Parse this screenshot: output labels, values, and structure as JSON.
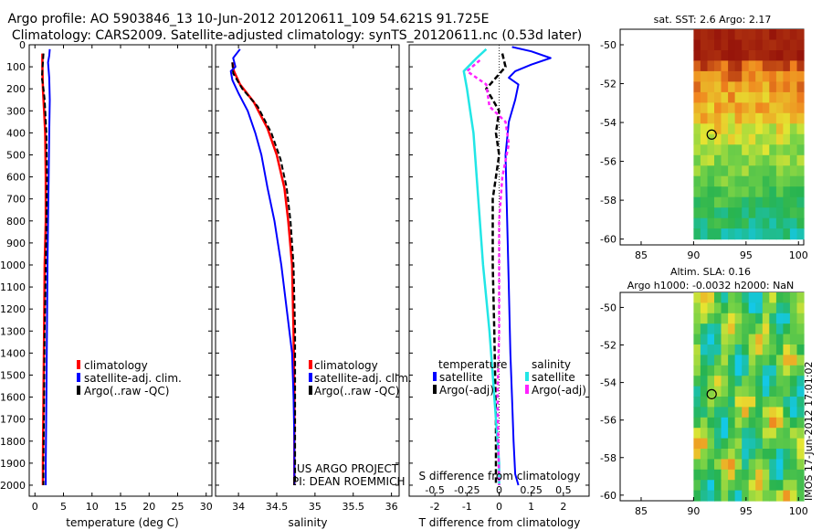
{
  "title": {
    "line1": "Argo profile: AO 5903846_13 10-Jun-2012 20120611_109 54.621S 91.725E",
    "line2": "Climatology: CARS2009. Satellite-adjusted climatology: synTS_20120611.nc (0.53d later)"
  },
  "footer": {
    "watermark": "IMOS 17-Jun-2012 17:01:02",
    "project_line1": "US ARGO PROJECT",
    "project_line2": "PI: DEAN ROEMMICH"
  },
  "colors": {
    "climatology": "#ff0000",
    "satellite": "#0000ff",
    "argo": "#000000",
    "salinity_sat": "#22e6e6",
    "salinity_argo": "#ff22ff"
  },
  "chart_data": [
    {
      "id": "temperature",
      "type": "line",
      "xlabel": "temperature (deg C)",
      "ylabel": "",
      "xlim": [
        -1,
        31
      ],
      "ylim": [
        0,
        2050
      ],
      "xticks": [
        0,
        5,
        10,
        15,
        20,
        25,
        30
      ],
      "yticks": [
        0,
        100,
        200,
        300,
        400,
        500,
        600,
        700,
        800,
        900,
        1000,
        1100,
        1200,
        1300,
        1400,
        1500,
        1600,
        1700,
        1800,
        1900,
        2000
      ],
      "legend": [
        "climatology",
        "satellite-adj. clim.",
        "Argo(..raw -QC)"
      ],
      "series": [
        {
          "name": "climatology",
          "color": "#ff0000",
          "dash": "",
          "width": 2.5,
          "x": [
            1.3,
            1.3,
            1.4,
            1.6,
            1.8,
            1.9,
            1.9,
            1.7,
            1.6,
            1.5,
            1.4,
            1.4
          ],
          "y": [
            40,
            100,
            200,
            300,
            400,
            600,
            800,
            1000,
            1300,
            1600,
            1900,
            2000
          ]
        },
        {
          "name": "satellite-adj. clim.",
          "color": "#0000ff",
          "dash": "",
          "width": 2,
          "x": [
            2.6,
            2.5,
            2.3,
            2.5,
            2.6,
            2.5,
            2.4,
            2.3,
            2.2,
            2.1,
            2.0,
            1.9,
            1.9
          ],
          "y": [
            20,
            50,
            80,
            150,
            250,
            400,
            600,
            800,
            1000,
            1300,
            1600,
            1900,
            2000
          ]
        },
        {
          "name": "Argo(..raw -QC)",
          "color": "#000000",
          "dash": "6,3",
          "width": 2,
          "x": [
            1.5,
            1.4,
            1.2,
            1.5,
            1.7,
            2.0,
            2.1,
            2.0,
            1.9,
            1.7,
            1.6,
            1.5,
            1.5
          ],
          "y": [
            40,
            80,
            150,
            200,
            250,
            400,
            600,
            800,
            1000,
            1300,
            1600,
            1900,
            2000
          ]
        }
      ]
    },
    {
      "id": "salinity",
      "type": "line",
      "xlabel": "salinity",
      "xlim": [
        33.7,
        36.1
      ],
      "ylim": [
        0,
        2050
      ],
      "xticks": [
        34,
        34.5,
        35,
        35.5,
        36
      ],
      "legend": [
        "climatology",
        "satellite-adj. clim.",
        "Argo(..raw -QC)"
      ],
      "series": [
        {
          "name": "climatology",
          "color": "#ff0000",
          "dash": "",
          "width": 2.5,
          "x": [
            33.92,
            33.94,
            34.02,
            34.2,
            34.38,
            34.5,
            34.6,
            34.65,
            34.7,
            34.72,
            34.73,
            34.73
          ],
          "y": [
            80,
            120,
            180,
            260,
            380,
            500,
            650,
            800,
            1000,
            1300,
            1600,
            2000
          ]
        },
        {
          "name": "satellite-adj. clim.",
          "color": "#0000ff",
          "dash": "",
          "width": 2,
          "x": [
            34.02,
            33.93,
            33.96,
            33.9,
            33.92,
            34.0,
            34.12,
            34.22,
            34.3,
            34.38,
            34.47,
            34.56,
            34.63,
            34.7,
            34.72,
            34.73,
            34.73
          ],
          "y": [
            20,
            60,
            100,
            120,
            160,
            220,
            300,
            400,
            500,
            650,
            800,
            1000,
            1200,
            1400,
            1600,
            1800,
            2000
          ]
        },
        {
          "name": "Argo(..raw -QC)",
          "color": "#000000",
          "dash": "6,3",
          "width": 2,
          "x": [
            33.92,
            33.93,
            34.05,
            34.25,
            34.43,
            34.55,
            34.63,
            34.68,
            34.72,
            34.74,
            34.74,
            34.74
          ],
          "y": [
            80,
            130,
            200,
            280,
            400,
            520,
            650,
            800,
            1000,
            1300,
            1600,
            2000
          ]
        }
      ]
    },
    {
      "id": "difference",
      "type": "line",
      "xlabel": "T difference from climatology",
      "xlabel_top": "S difference from climatology",
      "xlim": [
        -2.8,
        2.8
      ],
      "ylim": [
        0,
        2050
      ],
      "xticks_T": [
        -2,
        -1,
        0,
        1,
        2
      ],
      "xticks_S": [
        "-0.5",
        "-0.25",
        "0",
        "0.25",
        "0.5"
      ],
      "legend_headers": [
        "temperature",
        "salinity"
      ],
      "legend": [
        "satellite",
        "Argo(-adj)",
        "satellite",
        "Argo(-adj)"
      ],
      "series": [
        {
          "name": "T satellite",
          "color": "#0000ff",
          "dash": "",
          "width": 2,
          "x": [
            0.4,
            1.0,
            1.6,
            1.0,
            0.5,
            0.3,
            0.6,
            0.5,
            0.3,
            0.2,
            0.25,
            0.3,
            0.35,
            0.4,
            0.45,
            0.5,
            0.6
          ],
          "y": [
            10,
            30,
            60,
            90,
            120,
            150,
            180,
            250,
            350,
            500,
            800,
            1100,
            1400,
            1600,
            1800,
            1950,
            2000
          ]
        },
        {
          "name": "T Argo(-adj)",
          "color": "#000000",
          "dash": "6,3",
          "width": 2.5,
          "x": [
            0.1,
            0.2,
            -0.1,
            -0.4,
            -0.2,
            0.0,
            -0.1,
            0.0,
            -0.1,
            -0.2,
            -0.2,
            -0.15,
            -0.1,
            -0.1
          ],
          "y": [
            40,
            100,
            150,
            200,
            250,
            300,
            400,
            500,
            600,
            700,
            1000,
            1300,
            1700,
            2000
          ]
        },
        {
          "name": "S satellite",
          "color": "#22e6e6",
          "dash": "",
          "width": 2.5,
          "x": [
            -0.4,
            -0.7,
            -1.1,
            -1.0,
            -0.9,
            -0.8,
            -0.7,
            -0.6,
            -0.5,
            -0.3,
            -0.2,
            -0.1,
            0.0,
            0.0
          ],
          "y": [
            20,
            60,
            120,
            200,
            300,
            400,
            600,
            800,
            1000,
            1300,
            1500,
            1700,
            1900,
            2000
          ]
        },
        {
          "name": "S Argo(-adj)",
          "color": "#ff22ff",
          "dash": "4,3",
          "width": 2.5,
          "x": [
            -0.6,
            -1.0,
            -0.4,
            -0.3,
            0.2,
            0.3,
            0.1,
            0.0,
            0.0,
            0.0,
            -0.05,
            0.0
          ],
          "y": [
            70,
            120,
            180,
            280,
            350,
            450,
            600,
            800,
            1000,
            1300,
            1600,
            2000
          ]
        }
      ]
    },
    {
      "id": "sst_map",
      "type": "heatmap",
      "title": "sat. SST: 2.6 Argo: 2.17",
      "xlim": [
        83,
        100.5
      ],
      "ylim": [
        -60.3,
        -49.2
      ],
      "xticks": [
        85,
        90,
        95,
        100
      ],
      "yticks": [
        -50,
        -52,
        -54,
        -56,
        -58,
        -60
      ],
      "float_position": {
        "lon": 91.725,
        "lat": -54.621
      }
    },
    {
      "id": "sla_map",
      "type": "heatmap",
      "title_line1": "Altim. SLA: 0.16",
      "title_line2": "Argo h1000: -0.0032 h2000: NaN",
      "xlim": [
        83,
        100.5
      ],
      "ylim": [
        -60.3,
        -49.2
      ],
      "xticks": [
        85,
        90,
        95,
        100
      ],
      "yticks": [
        -50,
        -52,
        -54,
        -56,
        -58,
        -60
      ],
      "float_position": {
        "lon": 91.725,
        "lat": -54.621
      }
    }
  ]
}
